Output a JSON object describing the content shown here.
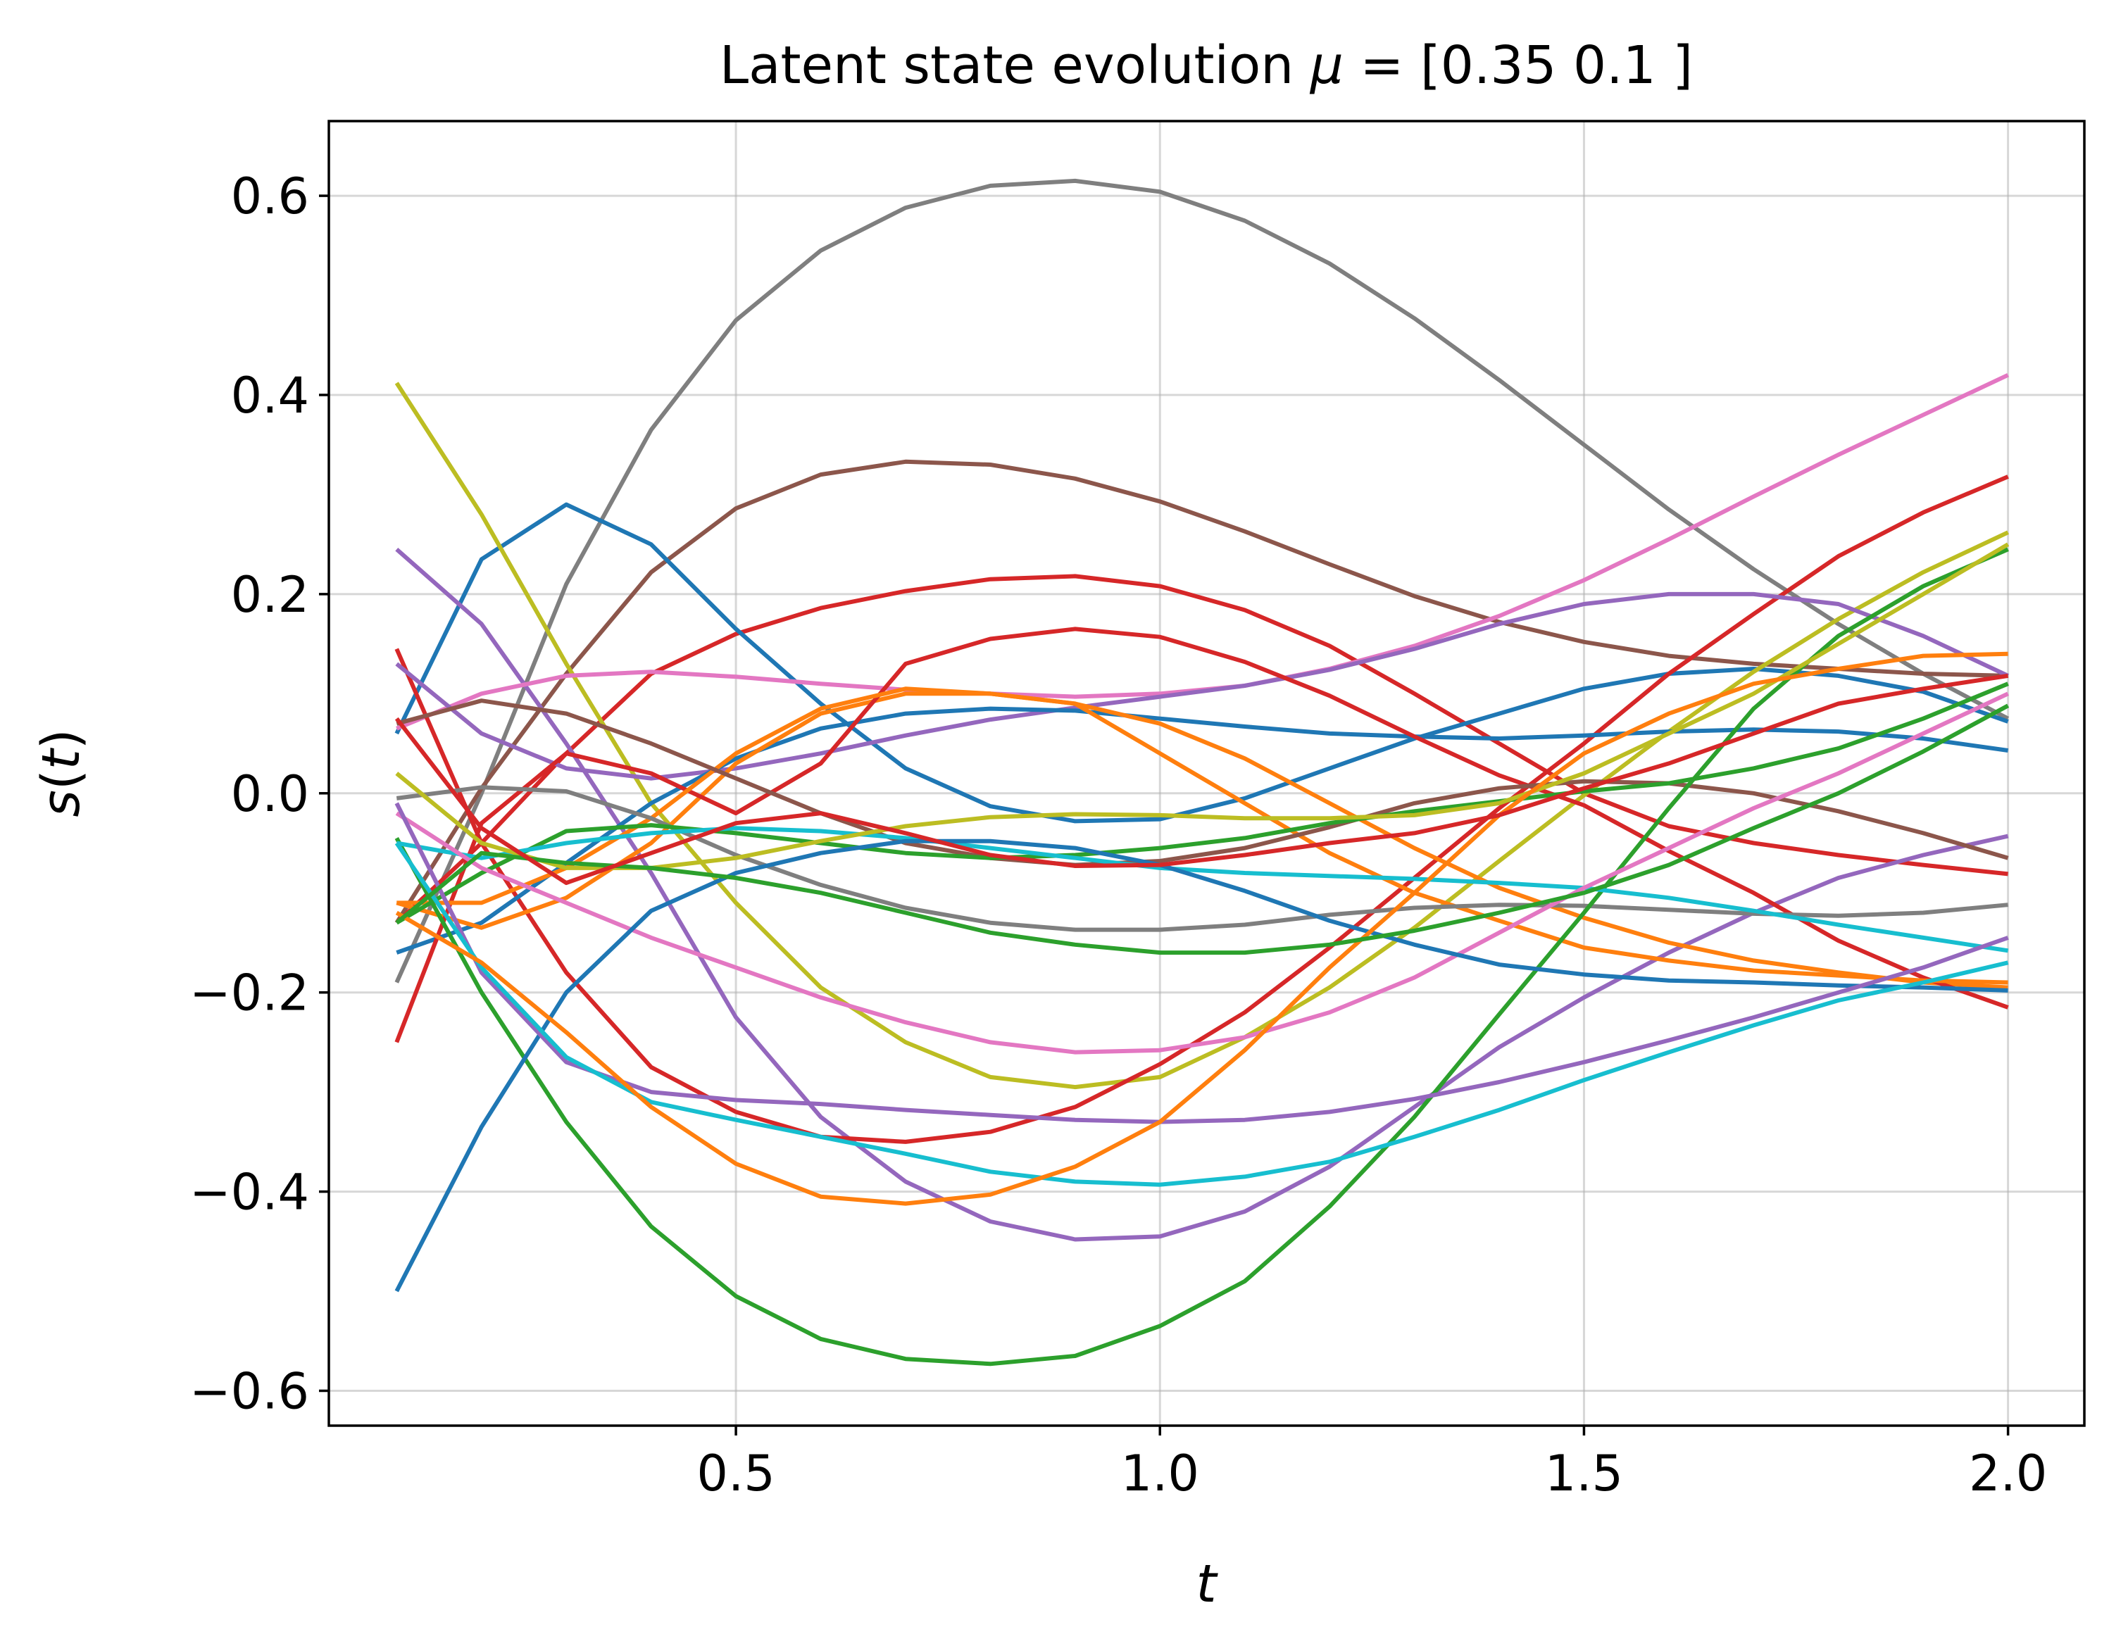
{
  "chart_data": {
    "type": "line",
    "title": "Latent state evolution μ = [0.35 0.1 ]",
    "xlabel": "t",
    "ylabel": "s(t)",
    "xlim": [
      0.02,
      2.09
    ],
    "ylim": [
      -0.635,
      0.675
    ],
    "xticks": [
      0.5,
      1.0,
      1.5,
      2.0
    ],
    "xtick_labels": [
      "0.5",
      "1.0",
      "1.5",
      "2.0"
    ],
    "yticks": [
      -0.6,
      -0.4,
      -0.2,
      0.0,
      0.2,
      0.4,
      0.6
    ],
    "ytick_labels": [
      "−0.6",
      "−0.4",
      "−0.2",
      "0.0",
      "0.2",
      "0.4",
      "0.6"
    ],
    "grid": true,
    "legend": "none",
    "x": [
      0.1,
      0.2,
      0.3,
      0.4,
      0.5,
      0.6,
      0.7,
      0.8,
      0.9,
      1.0,
      1.1,
      1.2,
      1.3,
      1.4,
      1.5,
      1.6,
      1.7,
      1.8,
      1.9,
      2.0
    ],
    "series": [
      {
        "color": "#7f7f7f",
        "values": [
          -0.19,
          0.0,
          0.21,
          0.365,
          0.475,
          0.545,
          0.588,
          0.61,
          0.615,
          0.604,
          0.575,
          0.532,
          0.477,
          0.415,
          0.35,
          0.285,
          0.225,
          0.17,
          0.12,
          0.075
        ]
      },
      {
        "color": "#8c564b",
        "values": [
          -0.13,
          0.005,
          0.12,
          0.222,
          0.286,
          0.32,
          0.333,
          0.33,
          0.316,
          0.293,
          0.263,
          0.23,
          0.198,
          0.172,
          0.152,
          0.138,
          0.13,
          0.125,
          0.12,
          0.118
        ]
      },
      {
        "color": "#d62728",
        "values": [
          -0.13,
          -0.05,
          0.04,
          0.12,
          0.16,
          0.186,
          0.203,
          0.215,
          0.218,
          0.208,
          0.184,
          0.148,
          0.1,
          0.05,
          0.0,
          -0.033,
          -0.05,
          -0.062,
          -0.072,
          -0.081
        ]
      },
      {
        "color": "#1f77b4",
        "values": [
          0.06,
          0.235,
          0.29,
          0.25,
          0.165,
          0.09,
          0.025,
          -0.013,
          -0.028,
          -0.026,
          -0.005,
          0.025,
          0.055,
          0.08,
          0.105,
          0.12,
          0.125,
          0.118,
          0.102,
          0.072
        ]
      },
      {
        "color": "#bcbd22",
        "values": [
          0.412,
          0.28,
          0.13,
          -0.01,
          -0.11,
          -0.195,
          -0.25,
          -0.285,
          -0.295,
          -0.285,
          -0.245,
          -0.195,
          -0.135,
          -0.068,
          -0.002,
          0.062,
          0.122,
          0.175,
          0.222,
          0.262
        ]
      },
      {
        "color": "#9467bd",
        "values": [
          0.245,
          0.17,
          0.05,
          -0.08,
          -0.225,
          -0.325,
          -0.39,
          -0.43,
          -0.448,
          -0.445,
          -0.42,
          -0.375,
          -0.315,
          -0.255,
          -0.205,
          -0.16,
          -0.12,
          -0.085,
          -0.062,
          -0.043
        ]
      },
      {
        "color": "#e377c2",
        "values": [
          0.065,
          0.1,
          0.118,
          0.122,
          0.117,
          0.11,
          0.104,
          0.1,
          0.097,
          0.1,
          0.108,
          0.125,
          0.148,
          0.178,
          0.214,
          0.255,
          0.298,
          0.34,
          0.38,
          0.42
        ]
      },
      {
        "color": "#d62728",
        "values": [
          0.145,
          -0.05,
          -0.18,
          -0.275,
          -0.32,
          -0.345,
          -0.35,
          -0.34,
          -0.315,
          -0.272,
          -0.22,
          -0.155,
          -0.085,
          -0.015,
          0.05,
          0.12,
          0.18,
          0.238,
          0.282,
          0.318
        ]
      },
      {
        "color": "#9467bd",
        "values": [
          0.13,
          0.06,
          0.025,
          0.015,
          0.025,
          0.04,
          0.058,
          0.074,
          0.086,
          0.097,
          0.108,
          0.124,
          0.145,
          0.17,
          0.19,
          0.2,
          0.2,
          0.19,
          0.158,
          0.118
        ]
      },
      {
        "color": "#1f77b4",
        "values": [
          -0.16,
          -0.13,
          -0.07,
          -0.01,
          0.035,
          0.065,
          0.08,
          0.085,
          0.083,
          0.075,
          0.067,
          0.06,
          0.057,
          0.055,
          0.058,
          0.062,
          0.064,
          0.062,
          0.055,
          0.043
        ]
      },
      {
        "color": "#ff7f0e",
        "values": [
          -0.11,
          -0.135,
          -0.105,
          -0.05,
          0.03,
          0.08,
          0.1,
          0.1,
          0.09,
          0.07,
          0.035,
          -0.01,
          -0.055,
          -0.095,
          -0.125,
          -0.15,
          -0.168,
          -0.18,
          -0.19,
          -0.195
        ]
      },
      {
        "color": "#d62728",
        "values": [
          -0.25,
          -0.03,
          0.04,
          0.02,
          -0.02,
          0.03,
          0.13,
          0.155,
          0.165,
          0.157,
          0.132,
          0.098,
          0.057,
          0.018,
          -0.012,
          -0.058,
          -0.1,
          -0.148,
          -0.185,
          -0.215
        ]
      },
      {
        "color": "#ff7f0e",
        "values": [
          -0.11,
          -0.11,
          -0.075,
          -0.025,
          0.04,
          0.085,
          0.105,
          0.1,
          0.09,
          0.04,
          -0.01,
          -0.06,
          -0.1,
          -0.128,
          -0.155,
          -0.168,
          -0.178,
          -0.183,
          -0.188,
          -0.19
        ]
      },
      {
        "color": "#8c564b",
        "values": [
          0.07,
          0.093,
          0.08,
          0.05,
          0.015,
          -0.02,
          -0.05,
          -0.065,
          -0.072,
          -0.068,
          -0.055,
          -0.034,
          -0.01,
          0.005,
          0.012,
          0.01,
          0.0,
          -0.018,
          -0.04,
          -0.065
        ]
      },
      {
        "color": "#7f7f7f",
        "values": [
          -0.005,
          0.006,
          0.002,
          -0.025,
          -0.062,
          -0.092,
          -0.115,
          -0.13,
          -0.137,
          -0.137,
          -0.132,
          -0.122,
          -0.115,
          -0.112,
          -0.113,
          -0.117,
          -0.121,
          -0.123,
          -0.12,
          -0.112
        ]
      },
      {
        "color": "#2ca02c",
        "values": [
          -0.045,
          -0.2,
          -0.33,
          -0.435,
          -0.505,
          -0.548,
          -0.568,
          -0.573,
          -0.565,
          -0.535,
          -0.49,
          -0.415,
          -0.325,
          -0.222,
          -0.12,
          -0.015,
          0.085,
          0.158,
          0.208,
          0.245
        ]
      },
      {
        "color": "#2ca02c",
        "values": [
          -0.13,
          -0.08,
          -0.038,
          -0.032,
          -0.04,
          -0.05,
          -0.06,
          -0.065,
          -0.062,
          -0.055,
          -0.045,
          -0.03,
          -0.018,
          -0.008,
          0.002,
          0.01,
          0.025,
          0.045,
          0.075,
          0.11
        ]
      },
      {
        "color": "#17becf",
        "values": [
          -0.05,
          -0.065,
          -0.05,
          -0.04,
          -0.035,
          -0.038,
          -0.045,
          -0.055,
          -0.065,
          -0.075,
          -0.08,
          -0.083,
          -0.086,
          -0.09,
          -0.095,
          -0.105,
          -0.118,
          -0.132,
          -0.145,
          -0.158
        ]
      },
      {
        "color": "#bcbd22",
        "values": [
          0.02,
          -0.05,
          -0.075,
          -0.075,
          -0.065,
          -0.048,
          -0.033,
          -0.024,
          -0.021,
          -0.022,
          -0.025,
          -0.025,
          -0.022,
          -0.01,
          0.02,
          0.06,
          0.1,
          0.15,
          0.2,
          0.25
        ]
      },
      {
        "color": "#e377c2",
        "values": [
          -0.02,
          -0.075,
          -0.11,
          -0.145,
          -0.175,
          -0.205,
          -0.23,
          -0.25,
          -0.26,
          -0.258,
          -0.245,
          -0.22,
          -0.185,
          -0.14,
          -0.095,
          -0.055,
          -0.015,
          0.02,
          0.06,
          0.1
        ]
      },
      {
        "color": "#1f77b4",
        "values": [
          -0.5,
          -0.335,
          -0.2,
          -0.118,
          -0.08,
          -0.06,
          -0.048,
          -0.048,
          -0.055,
          -0.072,
          -0.098,
          -0.128,
          -0.152,
          -0.172,
          -0.182,
          -0.188,
          -0.19,
          -0.193,
          -0.195,
          -0.198
        ]
      },
      {
        "color": "#9467bd",
        "values": [
          -0.01,
          -0.18,
          -0.27,
          -0.3,
          -0.308,
          -0.312,
          -0.318,
          -0.323,
          -0.328,
          -0.33,
          -0.328,
          -0.32,
          -0.307,
          -0.29,
          -0.27,
          -0.248,
          -0.225,
          -0.2,
          -0.175,
          -0.145
        ]
      },
      {
        "color": "#17becf",
        "values": [
          -0.05,
          -0.175,
          -0.265,
          -0.31,
          -0.328,
          -0.345,
          -0.362,
          -0.38,
          -0.39,
          -0.393,
          -0.385,
          -0.37,
          -0.345,
          -0.318,
          -0.288,
          -0.26,
          -0.233,
          -0.208,
          -0.19,
          -0.17
        ]
      },
      {
        "color": "#ff7f0e",
        "values": [
          -0.12,
          -0.17,
          -0.24,
          -0.315,
          -0.372,
          -0.405,
          -0.412,
          -0.403,
          -0.375,
          -0.33,
          -0.258,
          -0.175,
          -0.1,
          -0.022,
          0.04,
          0.08,
          0.11,
          0.125,
          0.138,
          0.14
        ]
      },
      {
        "color": "#2ca02c",
        "values": [
          -0.13,
          -0.06,
          -0.07,
          -0.075,
          -0.085,
          -0.1,
          -0.12,
          -0.14,
          -0.152,
          -0.16,
          -0.16,
          -0.152,
          -0.138,
          -0.12,
          -0.1,
          -0.072,
          -0.035,
          0.0,
          0.042,
          0.088
        ]
      },
      {
        "color": "#d62728",
        "values": [
          0.075,
          -0.035,
          -0.09,
          -0.06,
          -0.03,
          -0.02,
          -0.04,
          -0.062,
          -0.073,
          -0.072,
          -0.062,
          -0.05,
          -0.04,
          -0.022,
          0.005,
          0.03,
          0.06,
          0.09,
          0.105,
          0.118
        ]
      }
    ]
  }
}
